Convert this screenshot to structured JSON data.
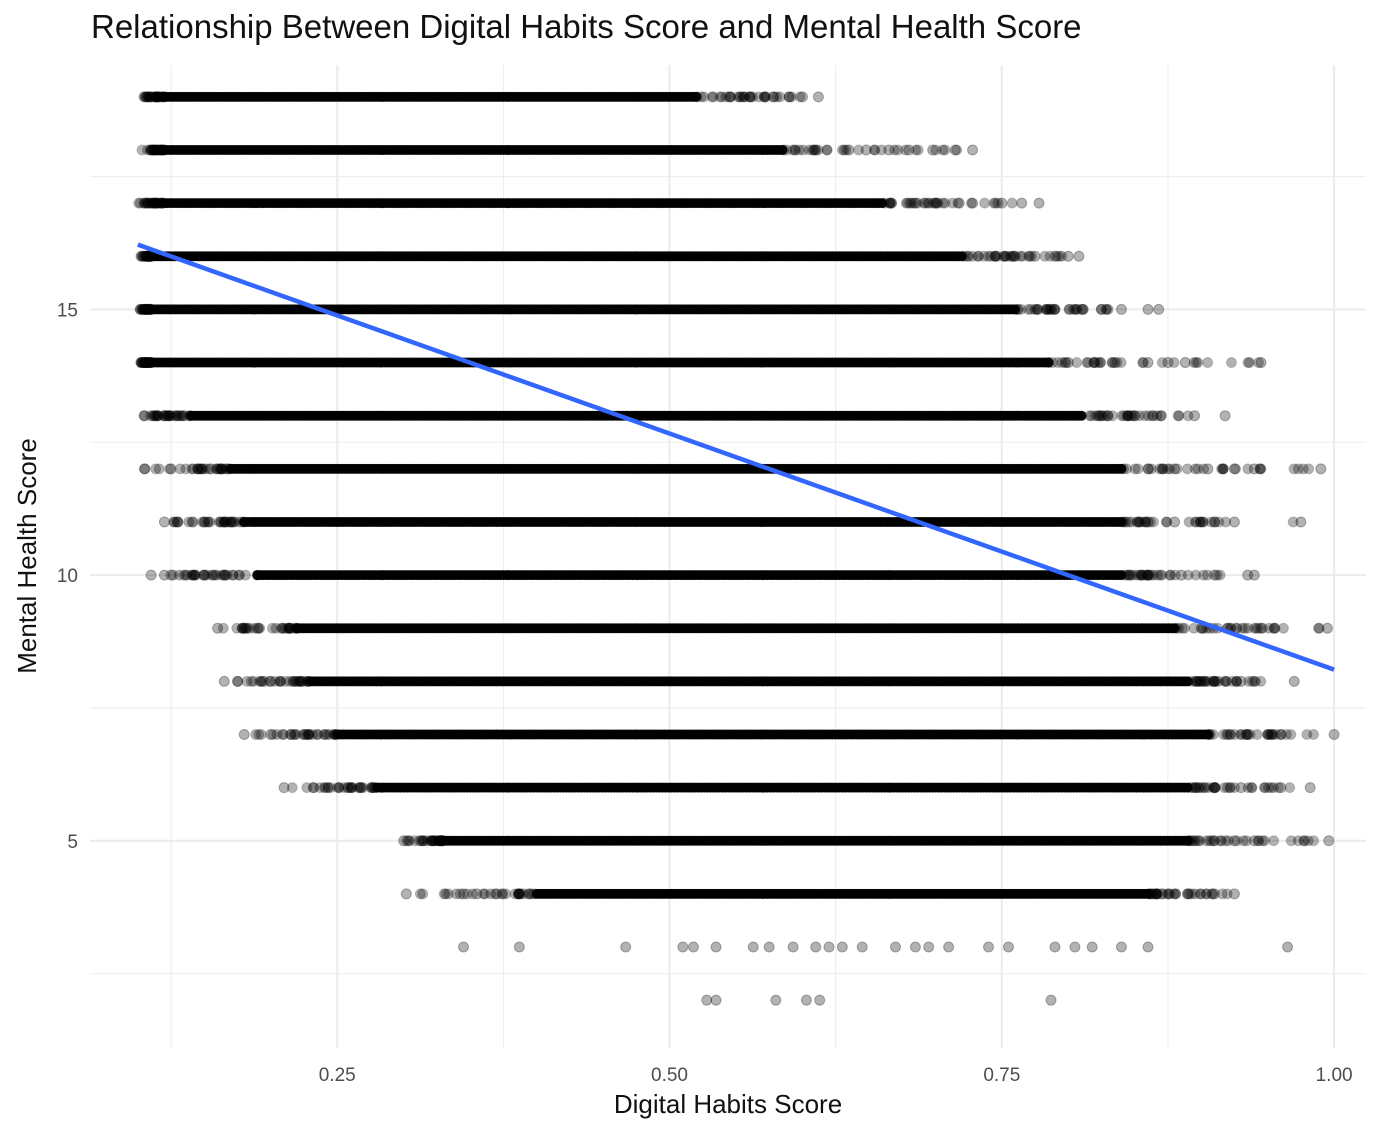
{
  "chart_data": {
    "type": "scatter",
    "title": "Relationship Between Digital Habits Score and Mental Health Score",
    "xlabel": "Digital Habits Score",
    "ylabel": "Mental Health Score",
    "xlim": [
      0.064,
      1.024
    ],
    "ylim": [
      1.1,
      19.6
    ],
    "x_ticks": [
      0.25,
      0.5,
      0.75,
      1.0
    ],
    "x_tick_labels": [
      "0.25",
      "0.50",
      "0.75",
      "1.00"
    ],
    "y_ticks": [
      5,
      10,
      15
    ],
    "y_tick_labels": [
      "5",
      "10",
      "15"
    ],
    "grid": true,
    "legend": "none",
    "point_color": "#000000",
    "point_alpha": 0.3,
    "line_color": "#3366ff",
    "trend_line": {
      "x": [
        0.1,
        1.0
      ],
      "y": [
        16.22,
        8.22
      ]
    },
    "levels": [
      {
        "y": 19,
        "x_min": 0.1,
        "x_max": 0.62,
        "dense": [
          0.12,
          0.52
        ],
        "outliers": [
          0.545,
          0.56,
          0.578,
          0.59,
          0.6,
          0.612
        ]
      },
      {
        "y": 18,
        "x_min": 0.1,
        "x_max": 0.728,
        "dense": [
          0.12,
          0.585
        ],
        "outliers": [
          0.61,
          0.635,
          0.648,
          0.665,
          0.68,
          0.698,
          0.715,
          0.728
        ]
      },
      {
        "y": 17,
        "x_min": 0.1,
        "x_max": 0.778,
        "dense": [
          0.12,
          0.66
        ],
        "outliers": [
          0.685,
          0.7,
          0.718,
          0.728,
          0.75,
          0.765,
          0.778
        ]
      },
      {
        "y": 16,
        "x_min": 0.1,
        "x_max": 0.808,
        "dense": [
          0.11,
          0.72
        ],
        "outliers": [
          0.745,
          0.76,
          0.775,
          0.79,
          0.8,
          0.808
        ]
      },
      {
        "y": 15,
        "x_min": 0.1,
        "x_max": 0.868,
        "dense": [
          0.11,
          0.76
        ],
        "outliers": [
          0.79,
          0.81,
          0.825,
          0.84,
          0.86,
          0.868
        ]
      },
      {
        "y": 14,
        "x_min": 0.1,
        "x_max": 0.945,
        "dense": [
          0.11,
          0.785
        ],
        "outliers": [
          0.8,
          0.82,
          0.835,
          0.86,
          0.875,
          0.888,
          0.945
        ]
      },
      {
        "y": 13,
        "x_min": 0.1,
        "x_max": 0.918,
        "dense": [
          0.14,
          0.81
        ],
        "outliers": [
          0.105,
          0.12,
          0.135,
          0.83,
          0.85,
          0.87,
          0.895,
          0.918
        ]
      },
      {
        "y": 12,
        "x_min": 0.105,
        "x_max": 0.99,
        "dense": [
          0.17,
          0.84
        ],
        "outliers": [
          0.105,
          0.125,
          0.145,
          0.155,
          0.86,
          0.88,
          0.905,
          0.925,
          0.94,
          0.99
        ]
      },
      {
        "y": 11,
        "x_min": 0.12,
        "x_max": 0.975,
        "dense": [
          0.18,
          0.84
        ],
        "outliers": [
          0.12,
          0.13,
          0.15,
          0.165,
          0.86,
          0.88,
          0.91,
          0.925,
          0.975
        ]
      },
      {
        "y": 10,
        "x_min": 0.11,
        "x_max": 0.94,
        "dense": [
          0.19,
          0.84
        ],
        "outliers": [
          0.11,
          0.12,
          0.125,
          0.15,
          0.165,
          0.86,
          0.885,
          0.91,
          0.935,
          0.94
        ]
      },
      {
        "y": 9,
        "x_min": 0.16,
        "x_max": 0.995,
        "dense": [
          0.22,
          0.88
        ],
        "outliers": [
          0.16,
          0.18,
          0.19,
          0.9,
          0.92,
          0.945,
          0.995
        ]
      },
      {
        "y": 8,
        "x_min": 0.165,
        "x_max": 0.97,
        "dense": [
          0.23,
          0.89
        ],
        "outliers": [
          0.165,
          0.175,
          0.195,
          0.2,
          0.91,
          0.93,
          0.97
        ]
      },
      {
        "y": 7,
        "x_min": 0.18,
        "x_max": 1.0,
        "dense": [
          0.25,
          0.905
        ],
        "outliers": [
          0.18,
          0.2,
          0.215,
          0.225,
          0.935,
          0.96,
          1.0
        ]
      },
      {
        "y": 6,
        "x_min": 0.21,
        "x_max": 0.982,
        "dense": [
          0.28,
          0.89
        ],
        "outliers": [
          0.21,
          0.232,
          0.258,
          0.268,
          0.91,
          0.93,
          0.96,
          0.982
        ]
      },
      {
        "y": 5,
        "x_min": 0.3,
        "x_max": 0.996,
        "dense": [
          0.33,
          0.89
        ],
        "outliers": [
          0.3,
          0.312,
          0.322,
          0.91,
          0.925,
          0.94,
          0.996
        ]
      },
      {
        "y": 4,
        "x_min": 0.302,
        "x_max": 0.925,
        "dense": [
          0.4,
          0.86
        ],
        "outliers": [
          0.302,
          0.345,
          0.355,
          0.37,
          0.87,
          0.89,
          0.91,
          0.925
        ]
      },
      {
        "y": 3,
        "x_min": 0.345,
        "x_max": 0.965,
        "dense": [],
        "outliers": [
          0.345,
          0.387,
          0.467,
          0.51,
          0.518,
          0.535,
          0.563,
          0.575,
          0.593,
          0.61,
          0.62,
          0.63,
          0.645,
          0.67,
          0.685,
          0.695,
          0.71,
          0.74,
          0.755,
          0.79,
          0.805,
          0.818,
          0.84,
          0.86,
          0.965
        ]
      },
      {
        "y": 2,
        "x_min": 0.528,
        "x_max": 0.787,
        "dense": [],
        "outliers": [
          0.528,
          0.535,
          0.58,
          0.603,
          0.613,
          0.787
        ]
      }
    ]
  }
}
